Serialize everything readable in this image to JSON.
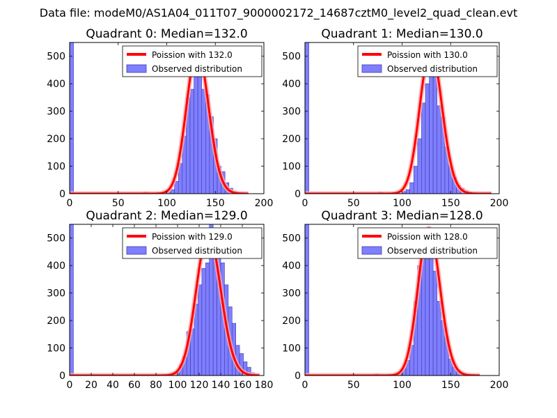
{
  "suptitle": "Data file: modeM0/AS1A04_011T07_9000002172_14687cztM0_level2_quad_clean.evt",
  "colors": {
    "hist_fill": "#7f7fff",
    "hist_edge": "#3b3bb0",
    "curve": "#ff0000",
    "curve_glow": "#ffaaaa"
  },
  "chart_data": [
    {
      "type": "bar",
      "title": "Quadrant 0: Median=132.0",
      "xlim": [
        0,
        200
      ],
      "ylim": [
        0,
        550
      ],
      "xticks": [
        0,
        50,
        100,
        150,
        200
      ],
      "yticks": [
        0,
        100,
        200,
        300,
        400,
        500
      ],
      "legend": {
        "position": "top-right",
        "line_label": "Poission with 132.0",
        "hist_label": "Observed distribution"
      },
      "hist_bin_width": 4,
      "hist_bins": [
        [
          0,
          550
        ],
        [
          76,
          6
        ],
        [
          80,
          3
        ],
        [
          100,
          6
        ],
        [
          104,
          15
        ],
        [
          108,
          45
        ],
        [
          112,
          110
        ],
        [
          116,
          210
        ],
        [
          120,
          350
        ],
        [
          124,
          380
        ],
        [
          128,
          510
        ],
        [
          132,
          470
        ],
        [
          136,
          380
        ],
        [
          140,
          360
        ],
        [
          144,
          280
        ],
        [
          148,
          200
        ],
        [
          152,
          100
        ],
        [
          156,
          80
        ],
        [
          160,
          40
        ],
        [
          164,
          20
        ],
        [
          168,
          8
        ],
        [
          172,
          5
        ],
        [
          176,
          2
        ]
      ],
      "curve_mean": 132,
      "curve_peak": 520,
      "curve_range": [
        0,
        184
      ]
    },
    {
      "type": "bar",
      "title": "Quadrant 1: Median=130.0",
      "xlim": [
        0,
        200
      ],
      "ylim": [
        0,
        550
      ],
      "xticks": [
        0,
        50,
        100,
        150,
        200
      ],
      "yticks": [
        0,
        100,
        200,
        300,
        400,
        500
      ],
      "legend": {
        "position": "top-right",
        "line_label": "Poission with 130.0",
        "hist_label": "Observed distribution"
      },
      "hist_bin_width": 4,
      "hist_bins": [
        [
          0,
          550
        ],
        [
          76,
          6
        ],
        [
          88,
          3
        ],
        [
          100,
          8
        ],
        [
          104,
          15
        ],
        [
          108,
          40
        ],
        [
          112,
          100
        ],
        [
          116,
          200
        ],
        [
          120,
          330
        ],
        [
          124,
          400
        ],
        [
          128,
          520
        ],
        [
          132,
          450
        ],
        [
          136,
          320
        ],
        [
          140,
          280
        ],
        [
          144,
          170
        ],
        [
          148,
          100
        ],
        [
          152,
          60
        ],
        [
          156,
          30
        ],
        [
          160,
          20
        ],
        [
          164,
          10
        ],
        [
          168,
          5
        ],
        [
          172,
          2
        ]
      ],
      "curve_mean": 130,
      "curve_peak": 525,
      "curve_range": [
        0,
        192
      ]
    },
    {
      "type": "bar",
      "title": "Quadrant 2: Median=129.0",
      "xlim": [
        0,
        180
      ],
      "ylim": [
        0,
        550
      ],
      "xticks": [
        0,
        20,
        40,
        60,
        80,
        100,
        120,
        140,
        160,
        180
      ],
      "yticks": [
        0,
        100,
        200,
        300,
        400,
        500
      ],
      "legend": {
        "position": "top-right",
        "line_label": "Poission with 129.0",
        "hist_label": "Observed distribution"
      },
      "hist_bin_width": 3.5,
      "hist_bins": [
        [
          0,
          550
        ],
        [
          98,
          15
        ],
        [
          101.5,
          40
        ],
        [
          105,
          70
        ],
        [
          108.5,
          160
        ],
        [
          112,
          170
        ],
        [
          115.5,
          260
        ],
        [
          119,
          330
        ],
        [
          122.5,
          390
        ],
        [
          126,
          410
        ],
        [
          129.5,
          550
        ],
        [
          133,
          530
        ],
        [
          136.5,
          450
        ],
        [
          140,
          410
        ],
        [
          143.5,
          330
        ],
        [
          147,
          250
        ],
        [
          150.5,
          190
        ],
        [
          154,
          110
        ],
        [
          157.5,
          80
        ],
        [
          161,
          50
        ],
        [
          164.5,
          30
        ],
        [
          168,
          10
        ],
        [
          171.5,
          5
        ]
      ],
      "curve_mean": 129,
      "curve_peak": 515,
      "curve_range": [
        0,
        176
      ]
    },
    {
      "type": "bar",
      "title": "Quadrant 3: Median=128.0",
      "xlim": [
        0,
        200
      ],
      "ylim": [
        0,
        550
      ],
      "xticks": [
        0,
        50,
        100,
        150,
        200
      ],
      "yticks": [
        0,
        100,
        200,
        300,
        400,
        500
      ],
      "legend": {
        "position": "top-right",
        "line_label": "Poission with 128.0",
        "hist_label": "Observed distribution"
      },
      "hist_bin_width": 4,
      "hist_bins": [
        [
          0,
          550
        ],
        [
          72,
          6
        ],
        [
          96,
          5
        ],
        [
          100,
          25
        ],
        [
          104,
          55
        ],
        [
          108,
          110
        ],
        [
          112,
          270
        ],
        [
          116,
          400
        ],
        [
          120,
          470
        ],
        [
          124,
          520
        ],
        [
          128,
          480
        ],
        [
          132,
          380
        ],
        [
          136,
          270
        ],
        [
          140,
          200
        ],
        [
          144,
          140
        ],
        [
          148,
          60
        ],
        [
          152,
          30
        ],
        [
          156,
          15
        ],
        [
          160,
          8
        ],
        [
          164,
          3
        ],
        [
          168,
          2
        ]
      ],
      "curve_mean": 128,
      "curve_peak": 535,
      "curve_range": [
        0,
        180
      ]
    }
  ]
}
